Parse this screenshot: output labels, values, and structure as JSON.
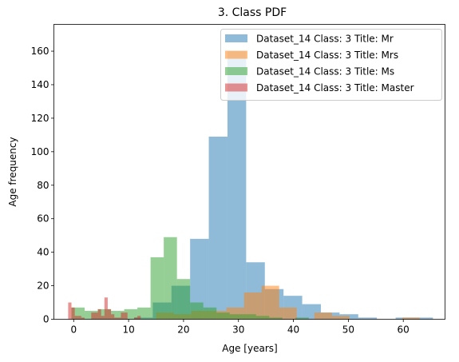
{
  "chart_data": {
    "type": "histogram",
    "title": "3. Class PDF",
    "xlabel": "Age [years]",
    "ylabel": "Age frequency",
    "xlim": [
      -3.6,
      67.6
    ],
    "ylim": [
      0,
      176
    ],
    "xticks": [
      0,
      10,
      20,
      30,
      40,
      50,
      60
    ],
    "yticks": [
      0,
      20,
      40,
      60,
      80,
      100,
      120,
      140,
      160
    ],
    "legend_position": "top-right",
    "alpha": 0.5,
    "series": [
      {
        "name": "Dataset_14 Class: 3 Title: Mr",
        "color": "#1f77b4",
        "bins": [
          [
            11,
            14.4,
            1
          ],
          [
            14.4,
            17.8,
            10
          ],
          [
            17.8,
            21.2,
            20
          ],
          [
            21.2,
            24.6,
            48
          ],
          [
            24.6,
            28,
            109
          ],
          [
            28,
            31.4,
            160
          ],
          [
            31.4,
            34.8,
            34
          ],
          [
            34.8,
            38.2,
            18
          ],
          [
            38.2,
            41.6,
            14
          ],
          [
            41.6,
            45,
            9
          ],
          [
            45,
            48.4,
            4
          ],
          [
            48.4,
            51.8,
            3
          ],
          [
            51.8,
            55.2,
            1
          ],
          [
            55.2,
            58.6,
            0
          ],
          [
            58.6,
            62,
            1
          ],
          [
            62,
            65.4,
            1
          ]
        ]
      },
      {
        "name": "Dataset_14 Class: 3 Title: Mrs",
        "color": "#ff7f0e",
        "bins": [
          [
            15,
            18.2,
            4
          ],
          [
            18.2,
            21.4,
            3
          ],
          [
            21.4,
            24.6,
            5
          ],
          [
            24.6,
            27.8,
            5
          ],
          [
            27.8,
            31,
            7
          ],
          [
            31,
            34.2,
            16
          ],
          [
            34.2,
            37.4,
            20
          ],
          [
            37.4,
            40.6,
            7
          ],
          [
            40.6,
            43.8,
            0
          ],
          [
            43.8,
            47,
            4
          ],
          [
            47,
            50.2,
            2
          ],
          [
            50.2,
            53.4,
            0
          ],
          [
            53.4,
            56.6,
            0
          ],
          [
            56.6,
            59.8,
            0
          ],
          [
            59.8,
            63,
            1
          ]
        ]
      },
      {
        "name": "Dataset_14 Class: 3 Title: Ms",
        "color": "#2ca02c",
        "bins": [
          [
            -0.4,
            2,
            7
          ],
          [
            2,
            4.4,
            5
          ],
          [
            4.4,
            6.8,
            6
          ],
          [
            6.8,
            9.2,
            5
          ],
          [
            9.2,
            11.6,
            6
          ],
          [
            11.6,
            14,
            7
          ],
          [
            14,
            16.4,
            37
          ],
          [
            16.4,
            18.8,
            49
          ],
          [
            18.8,
            21.2,
            24
          ],
          [
            21.2,
            23.6,
            10
          ],
          [
            23.6,
            26,
            7
          ],
          [
            26,
            28.4,
            4
          ],
          [
            28.4,
            30.8,
            3
          ],
          [
            30.8,
            33.2,
            3
          ],
          [
            33.2,
            35.6,
            2
          ],
          [
            35.6,
            38,
            1
          ],
          [
            38,
            40.4,
            0
          ],
          [
            40.4,
            42.8,
            1
          ]
        ]
      },
      {
        "name": "Dataset_14 Class: 3 Title: Master",
        "color": "#d62728",
        "bins": [
          [
            -1,
            -0.4,
            10
          ],
          [
            -0.4,
            0.2,
            7
          ],
          [
            0.2,
            0.8,
            2
          ],
          [
            0.8,
            1.4,
            2
          ],
          [
            1.4,
            2,
            1
          ],
          [
            2,
            2.6,
            0
          ],
          [
            2.6,
            3.2,
            0
          ],
          [
            3.2,
            3.8,
            4
          ],
          [
            3.8,
            4.4,
            4
          ],
          [
            4.4,
            5,
            6
          ],
          [
            5,
            5.6,
            2
          ],
          [
            5.6,
            6.2,
            13
          ],
          [
            6.2,
            6.8,
            6
          ],
          [
            6.8,
            7.4,
            3
          ],
          [
            7.4,
            8,
            1
          ],
          [
            8,
            8.6,
            1
          ],
          [
            8.6,
            9.2,
            4
          ],
          [
            9.2,
            9.8,
            4
          ],
          [
            9.8,
            10.4,
            0
          ],
          [
            10.4,
            11,
            0
          ],
          [
            11,
            11.6,
            1
          ],
          [
            11.6,
            12.2,
            2
          ]
        ]
      }
    ]
  }
}
